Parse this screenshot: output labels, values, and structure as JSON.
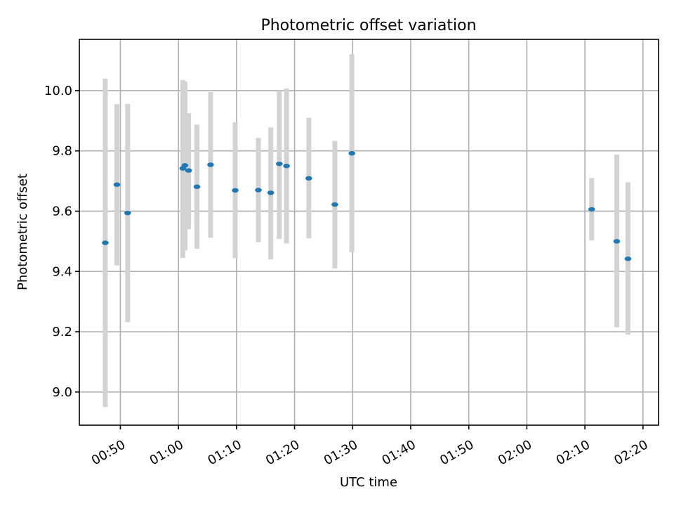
{
  "chart_data": {
    "type": "scatter",
    "title": "Photometric offset variation",
    "xlabel": "UTC time",
    "ylabel": "Photometric offset",
    "x_tick_labels": [
      "00:50",
      "01:00",
      "01:10",
      "01:20",
      "01:30",
      "01:40",
      "01:50",
      "02:00",
      "02:10",
      "02:20"
    ],
    "x_tick_minutes": [
      50,
      60,
      70,
      80,
      90,
      100,
      110,
      120,
      130,
      140
    ],
    "y_ticks": [
      9.0,
      9.2,
      9.4,
      9.6,
      9.8,
      10.0
    ],
    "y_tick_labels": [
      "9.0",
      "9.2",
      "9.4",
      "9.6",
      "9.8",
      "10.0"
    ],
    "xlim": [
      "00:42:56",
      "02:22:41"
    ],
    "ylim": [
      8.89,
      10.17
    ],
    "grid": true,
    "point_color": "#1f77b4",
    "errorbar_color": "#d3d3d3",
    "points": [
      {
        "time": "00:47:24",
        "y": 9.495,
        "ylow": 8.95,
        "yhigh": 10.04
      },
      {
        "time": "00:49:24",
        "y": 9.688,
        "ylow": 9.42,
        "yhigh": 9.955
      },
      {
        "time": "00:51:15",
        "y": 9.594,
        "ylow": 9.232,
        "yhigh": 9.956
      },
      {
        "time": "01:00:45",
        "y": 9.742,
        "ylow": 9.445,
        "yhigh": 10.035
      },
      {
        "time": "01:01:07",
        "y": 9.752,
        "ylow": 9.47,
        "yhigh": 10.03
      },
      {
        "time": "01:01:45",
        "y": 9.735,
        "ylow": 9.54,
        "yhigh": 9.925
      },
      {
        "time": "01:03:11",
        "y": 9.681,
        "ylow": 9.475,
        "yhigh": 9.887
      },
      {
        "time": "01:05:32",
        "y": 9.754,
        "ylow": 9.512,
        "yhigh": 9.995
      },
      {
        "time": "01:09:47",
        "y": 9.669,
        "ylow": 9.444,
        "yhigh": 9.895
      },
      {
        "time": "01:13:46",
        "y": 9.67,
        "ylow": 9.497,
        "yhigh": 9.843
      },
      {
        "time": "01:15:54",
        "y": 9.661,
        "ylow": 9.44,
        "yhigh": 9.878
      },
      {
        "time": "01:17:22",
        "y": 9.757,
        "ylow": 9.508,
        "yhigh": 10.0
      },
      {
        "time": "01:18:37",
        "y": 9.75,
        "ylow": 9.493,
        "yhigh": 10.007
      },
      {
        "time": "01:22:27",
        "y": 9.709,
        "ylow": 9.51,
        "yhigh": 9.91
      },
      {
        "time": "01:26:56",
        "y": 9.622,
        "ylow": 9.41,
        "yhigh": 9.833
      },
      {
        "time": "01:29:52",
        "y": 9.792,
        "ylow": 9.464,
        "yhigh": 10.12
      },
      {
        "time": "02:11:10",
        "y": 9.606,
        "ylow": 9.503,
        "yhigh": 9.71
      },
      {
        "time": "02:15:29",
        "y": 9.5,
        "ylow": 9.215,
        "yhigh": 9.788
      },
      {
        "time": "02:17:25",
        "y": 9.442,
        "ylow": 9.19,
        "yhigh": 9.696
      }
    ]
  }
}
